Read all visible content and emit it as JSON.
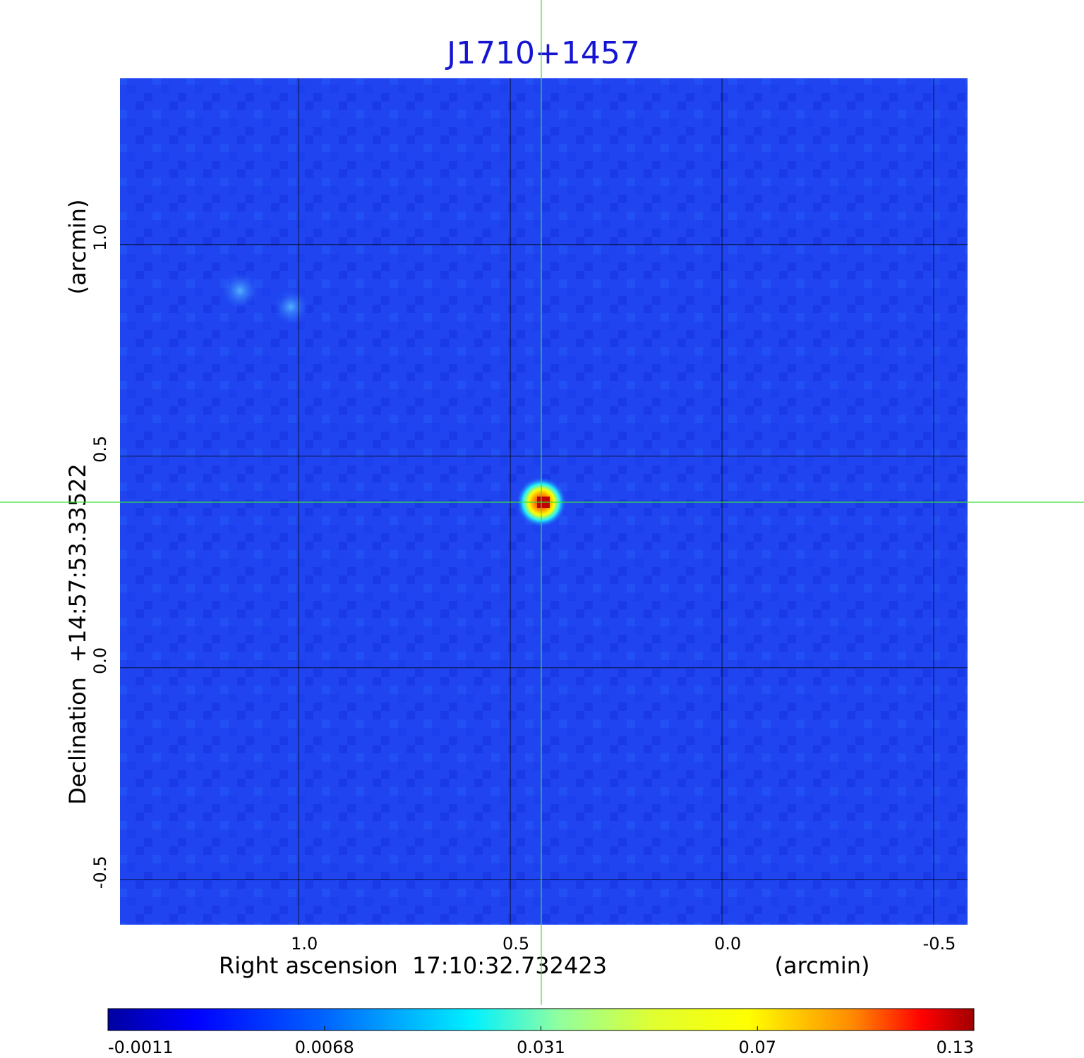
{
  "chart_data": {
    "type": "image",
    "title": "J1710+1457",
    "x_label": "Right ascension  17:10:32.732423",
    "x_unit": "(arcmin)",
    "y_label": "Declination  +14:57:53.33522",
    "y_unit": "(arcmin)",
    "xlim": [
      1.422,
      -0.58
    ],
    "ylim": [
      -0.607,
      1.393
    ],
    "xticks": [
      {
        "value": 1,
        "label": "1.0"
      },
      0.5,
      {
        "value": 0,
        "label": "0.0"
      },
      -0.5
    ],
    "yticks": [
      {
        "value": 1,
        "label": "1.0"
      },
      0.5,
      {
        "value": 0,
        "label": "0.0"
      },
      -0.5
    ],
    "grid": true,
    "colorbar_ticks": [
      -0.0011,
      0.0068,
      0.031,
      0.07,
      0.13
    ]
  }
}
